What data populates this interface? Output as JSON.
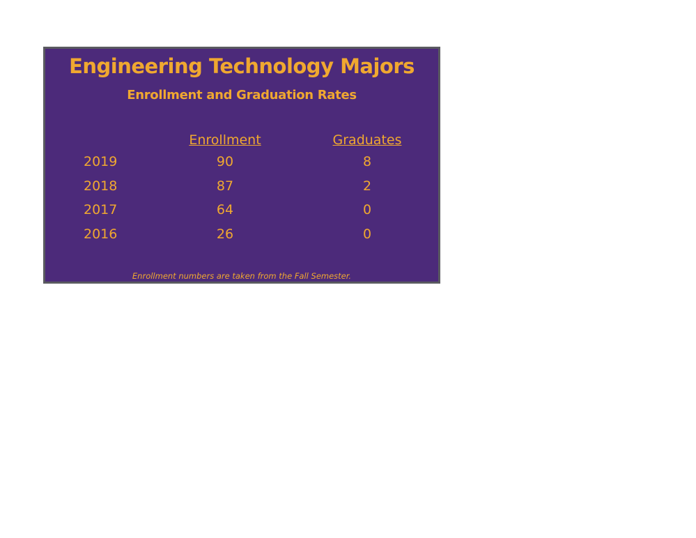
{
  "header": {
    "title": "Engineering Technology Majors",
    "subtitle": "Enrollment and Graduation Rates"
  },
  "table": {
    "columns": [
      "Enrollment",
      "Graduates"
    ],
    "rows": [
      [
        "2019",
        "90",
        "8"
      ],
      [
        "2018",
        "87",
        "2"
      ],
      [
        "2017",
        "64",
        "0"
      ],
      [
        "2016",
        "26",
        "0"
      ]
    ]
  },
  "footnote": "Enrollment numbers are taken from the Fall Semester."
}
